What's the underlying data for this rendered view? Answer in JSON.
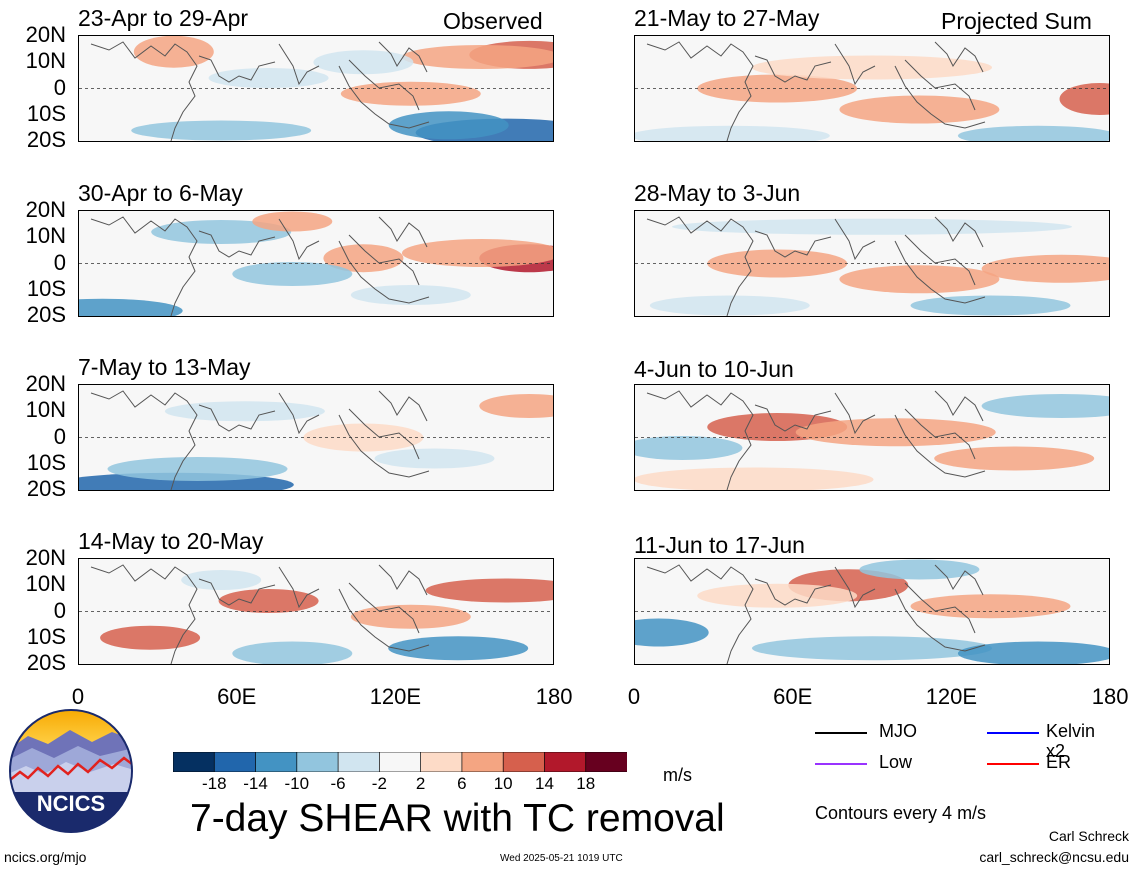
{
  "labels": {
    "observed": "Observed",
    "projected": "Projected Sum",
    "main_title": "7-day SHEAR with TC removal",
    "units": "m/s",
    "contours": "Contours every 4 m/s",
    "author": "Carl Schreck",
    "email": "carl_schreck@ncsu.edu",
    "site": "ncics.org/mjo",
    "timestamp": "Wed 2025-05-21 1019 UTC",
    "logo_text": "NCICS"
  },
  "legend": {
    "items": [
      {
        "label": "MJO",
        "color": "#000000"
      },
      {
        "label": "Kelvin x2",
        "color": "#0000ff"
      },
      {
        "label": "Low",
        "color": "#9933ff"
      },
      {
        "label": "ER",
        "color": "#ff0000"
      }
    ]
  },
  "colorbar": {
    "colors": [
      "#053061",
      "#2166ac",
      "#4393c3",
      "#92c5de",
      "#d1e5f0",
      "#f7f7f7",
      "#fddbc7",
      "#f4a582",
      "#d6604d",
      "#b2182b",
      "#67001f"
    ],
    "ticks": [
      "-18",
      "-14",
      "-10",
      "-6",
      "-2",
      "2",
      "6",
      "10",
      "14",
      "18"
    ]
  },
  "chart_data": {
    "type": "heatmap",
    "title": "7-day SHEAR with TC removal",
    "units": "m/s",
    "xticks": [
      "0",
      "60E",
      "120E",
      "180"
    ],
    "yticks": [
      "20N",
      "10N",
      "0",
      "10S",
      "20S"
    ],
    "xlim": [
      0,
      180
    ],
    "ylim": [
      -20,
      20
    ],
    "panels": [
      {
        "title": "23-Apr to 29-Apr",
        "group": "Observed"
      },
      {
        "title": "30-Apr to 6-May",
        "group": "Observed"
      },
      {
        "title": "7-May to 13-May",
        "group": "Observed"
      },
      {
        "title": "14-May to 20-May",
        "group": "Observed"
      },
      {
        "title": "21-May to 27-May",
        "group": "Projected Sum"
      },
      {
        "title": "28-May to 3-Jun",
        "group": "Projected Sum"
      },
      {
        "title": "4-Jun to 10-Jun",
        "group": "Projected Sum"
      },
      {
        "title": "11-Jun to 17-Jun",
        "group": "Projected Sum"
      }
    ]
  }
}
